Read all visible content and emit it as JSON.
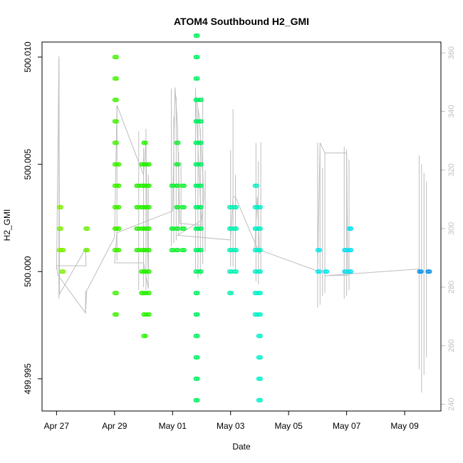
{
  "chart_data": {
    "type": "scatter",
    "title": "ATOM4 Southbound H2_GMI",
    "xlabel": "Date",
    "ylabel": "H2_GMI",
    "x_ticks": [
      "Apr 27",
      "Apr 29",
      "May 01",
      "May 03",
      "May 05",
      "May 07",
      "May 09"
    ],
    "x_range": [
      "2018-04-26T12:00",
      "2018-05-10T06:00"
    ],
    "y_ticks": [
      "499.995",
      "500.000",
      "500.005",
      "500.010"
    ],
    "y_range": [
      499.9935,
      500.0107
    ],
    "y2_ticks": [
      "240",
      "260",
      "280",
      "300",
      "320",
      "340",
      "360"
    ],
    "y2_range": [
      237.7,
      363.7
    ],
    "grid": false,
    "colors": {
      "gray_line": "#bebebe",
      "apr27": "#7cf000",
      "apr28": "#6cf000",
      "apr29": "#40f000",
      "apr30": "#28f000",
      "may01": "#10f030",
      "may02": "#00f060",
      "may03": "#00f0b0",
      "may04": "#00f0c8",
      "may06": "#00e8f0",
      "may07": "#00e0f0",
      "may09": "#0090e8"
    },
    "series": [
      {
        "color": "apr27",
        "points": [
          {
            "x": "2018-04-27T02:00",
            "ys": [
              500.003,
              500.002,
              500.001
            ]
          },
          {
            "x": "2018-04-27T04:00",
            "ys": [
              500.001,
              500.0
            ]
          }
        ]
      },
      {
        "color": "apr28",
        "points": [
          {
            "x": "2018-04-28T00:00",
            "ys": [
              500.002,
              500.001
            ]
          }
        ]
      },
      {
        "color": "apr29",
        "points": [
          {
            "x": "2018-04-29T00:00",
            "ys": [
              500.01,
              500.009,
              500.008,
              500.007,
              500.006,
              500.005,
              500.004,
              500.003,
              500.002,
              500.001,
              499.999,
              499.998
            ]
          },
          {
            "x": "2018-04-29T02:00",
            "ys": [
              500.005,
              500.004,
              500.003,
              500.002,
              500.001
            ]
          }
        ]
      },
      {
        "color": "apr30",
        "points": [
          {
            "x": "2018-04-29T18:00",
            "ys": [
              500.004,
              500.003,
              500.002,
              500.001
            ]
          },
          {
            "x": "2018-04-29T22:00",
            "ys": [
              500.005,
              500.004,
              500.003,
              500.002,
              500.001,
              500.0,
              499.999
            ]
          },
          {
            "x": "2018-04-30T00:00",
            "ys": [
              500.006,
              500.005,
              500.004,
              500.003,
              500.002,
              500.001,
              500.0,
              499.999,
              499.998,
              499.997
            ]
          },
          {
            "x": "2018-04-30T03:00",
            "ys": [
              500.005,
              500.004,
              500.003,
              500.002,
              500.001,
              500.0,
              499.999,
              499.998
            ]
          }
        ]
      },
      {
        "color": "may01",
        "points": [
          {
            "x": "2018-04-30T23:00",
            "ys": [
              500.004,
              500.002,
              500.001
            ]
          },
          {
            "x": "2018-05-01T03:00",
            "ys": [
              500.006,
              500.005,
              500.004,
              500.003,
              500.002,
              500.001
            ]
          },
          {
            "x": "2018-05-01T08:00",
            "ys": [
              500.004,
              500.003,
              500.002,
              500.001
            ]
          }
        ]
      },
      {
        "color": "may02",
        "points": [
          {
            "x": "2018-05-01T19:00",
            "ys": [
              500.011,
              500.01,
              500.009,
              500.008,
              500.007,
              500.006,
              500.005,
              500.004,
              500.003,
              500.002,
              500.001,
              500.0,
              499.999,
              499.998,
              499.997,
              499.996,
              499.995,
              499.994
            ]
          },
          {
            "x": "2018-05-01T22:00",
            "ys": [
              500.008,
              500.007,
              500.006,
              500.005,
              500.004,
              500.003,
              500.002,
              500.001,
              500.0
            ]
          }
        ]
      },
      {
        "color": "may03",
        "points": [
          {
            "x": "2018-05-02T23:00",
            "ys": [
              500.003,
              500.002,
              500.001,
              500.0,
              499.999
            ]
          },
          {
            "x": "2018-05-03T03:00",
            "ys": [
              500.003,
              500.002,
              500.001,
              500.0
            ]
          }
        ]
      },
      {
        "color": "may04",
        "points": [
          {
            "x": "2018-05-03T20:00",
            "ys": [
              500.004,
              500.003,
              500.002,
              500.001,
              500.0,
              499.999,
              499.998
            ]
          },
          {
            "x": "2018-05-03T23:00",
            "ys": [
              500.003,
              500.002,
              500.001,
              500.0,
              499.999,
              499.998,
              499.997,
              499.996,
              499.995,
              499.994
            ]
          }
        ]
      },
      {
        "color": "may06",
        "points": [
          {
            "x": "2018-05-06T00:00",
            "ys": [
              500.001,
              500.0
            ]
          },
          {
            "x": "2018-05-06T06:00",
            "ys": [
              500.0
            ]
          }
        ]
      },
      {
        "color": "may07",
        "points": [
          {
            "x": "2018-05-06T22:00",
            "ys": [
              500.001,
              500.0
            ]
          },
          {
            "x": "2018-05-07T02:00",
            "ys": [
              500.002,
              500.001,
              500.0
            ]
          }
        ]
      },
      {
        "color": "may09",
        "points": [
          {
            "x": "2018-05-09T12:00",
            "ys": [
              500.0
            ]
          },
          {
            "x": "2018-05-09T19:00",
            "ys": [
              500.0
            ]
          }
        ]
      }
    ],
    "gray_path": [
      {
        "x": "2018-04-27T00:00",
        "y": 286.2
      },
      {
        "x": "2018-04-27T02:00",
        "y": 358.2
      },
      {
        "x": "2018-04-27T02:30",
        "y": 277.7
      },
      {
        "x": "2018-04-28T00:00",
        "y": 293.1
      },
      {
        "x": "2018-04-28T00:30",
        "y": 287.3
      },
      {
        "x": "2018-04-27T00:00",
        "y": 287.3
      },
      {
        "x": "2018-04-27T01:00",
        "y": 284.1
      },
      {
        "x": "2018-04-28T00:00",
        "y": 271.2
      },
      {
        "x": "2018-04-28T01:00",
        "y": 278.8
      },
      {
        "x": "2018-04-29T00:00",
        "y": 297.0
      },
      {
        "x": "2018-04-29T02:00",
        "y": 342.1
      },
      {
        "x": "2018-04-30T00:00",
        "y": 318.3
      },
      {
        "x": "2018-04-30T02:00",
        "y": 330.0
      },
      {
        "x": "2018-04-30T04:00",
        "y": 279.5
      },
      {
        "x": "2018-04-30T00:00",
        "y": 288.3
      },
      {
        "x": "2018-04-29T00:00",
        "y": 288.3
      },
      {
        "x": "2018-04-29T02:00",
        "y": 298.6
      },
      {
        "x": "2018-05-01T00:00",
        "y": 306.0
      },
      {
        "x": "2018-05-01T02:00",
        "y": 348.2
      },
      {
        "x": "2018-05-01T04:00",
        "y": 335.7
      },
      {
        "x": "2018-05-01T06:00",
        "y": 301.8
      },
      {
        "x": "2018-05-02T00:00",
        "y": 301.1
      },
      {
        "x": "2018-05-01T19:00",
        "y": 345.8
      },
      {
        "x": "2018-05-01T22:00",
        "y": 338.6
      },
      {
        "x": "2018-05-02T02:00",
        "y": 311.3
      },
      {
        "x": "2018-05-02T00:00",
        "y": 302.8
      },
      {
        "x": "2018-05-01T04:00",
        "y": 297.7
      },
      {
        "x": "2018-05-03T00:00",
        "y": 296.1
      },
      {
        "x": "2018-05-03T02:00",
        "y": 310.8
      },
      {
        "x": "2018-05-03T04:00",
        "y": 310.8
      },
      {
        "x": "2018-05-04T00:00",
        "y": 291.4
      },
      {
        "x": "2018-05-03T22:00",
        "y": 310.8
      },
      {
        "x": "2018-05-03T20:00",
        "y": 293.3
      },
      {
        "x": "2018-05-06T00:00",
        "y": 285.5
      },
      {
        "x": "2018-05-06T02:00",
        "y": 329.3
      },
      {
        "x": "2018-05-06T06:00",
        "y": 325.8
      },
      {
        "x": "2018-05-07T00:00",
        "y": 325.8
      },
      {
        "x": "2018-05-07T01:00",
        "y": 284.1
      },
      {
        "x": "2018-05-06T06:00",
        "y": 283.9
      },
      {
        "x": "2018-05-09T12:00",
        "y": 286.2
      }
    ],
    "gray_spikes": [
      {
        "x": "2018-04-27T02:00",
        "lo": 276.0,
        "hi": 358.8
      },
      {
        "x": "2018-04-28T00:00",
        "lo": 271.0,
        "hi": 278.8
      },
      {
        "x": "2018-04-29T02:00",
        "lo": 289.0,
        "hi": 342.1
      },
      {
        "x": "2018-04-29T20:00",
        "lo": 279.0,
        "hi": 333.2
      },
      {
        "x": "2018-04-30T00:00",
        "lo": 280.0,
        "hi": 327.5
      },
      {
        "x": "2018-04-30T02:00",
        "lo": 279.0,
        "hi": 334.1
      },
      {
        "x": "2018-04-30T04:00",
        "lo": 285.0,
        "hi": 318.4
      },
      {
        "x": "2018-04-30T23:00",
        "lo": 294.0,
        "hi": 347.8
      },
      {
        "x": "2018-05-01T01:00",
        "lo": 295.0,
        "hi": 338.2
      },
      {
        "x": "2018-05-01T03:00",
        "lo": 296.0,
        "hi": 345.0
      },
      {
        "x": "2018-05-01T05:00",
        "lo": 298.0,
        "hi": 326.0
      },
      {
        "x": "2018-05-01T07:00",
        "lo": 299.0,
        "hi": 322.8
      },
      {
        "x": "2018-05-01T19:00",
        "lo": 286.0,
        "hi": 348.1
      },
      {
        "x": "2018-05-01T21:00",
        "lo": 283.0,
        "hi": 341.2
      },
      {
        "x": "2018-05-01T23:00",
        "lo": 284.0,
        "hi": 334.1
      },
      {
        "x": "2018-05-02T01:00",
        "lo": 288.0,
        "hi": 345.0
      },
      {
        "x": "2018-05-02T03:00",
        "lo": 292.0,
        "hi": 320.0
      },
      {
        "x": "2018-05-03T00:00",
        "lo": 287.0,
        "hi": 326.8
      },
      {
        "x": "2018-05-03T02:00",
        "lo": 287.0,
        "hi": 340.8
      },
      {
        "x": "2018-05-03T04:00",
        "lo": 286.0,
        "hi": 318.4
      },
      {
        "x": "2018-05-03T21:00",
        "lo": 282.0,
        "hi": 329.2
      },
      {
        "x": "2018-05-03T23:00",
        "lo": 281.0,
        "hi": 323.0
      },
      {
        "x": "2018-05-04T01:00",
        "lo": 285.0,
        "hi": 329.5
      },
      {
        "x": "2018-05-06T00:00",
        "lo": 273.0,
        "hi": 329.3
      },
      {
        "x": "2018-05-06T02:00",
        "lo": 274.0,
        "hi": 326.5
      },
      {
        "x": "2018-05-06T04:00",
        "lo": 277.0,
        "hi": 320.8
      },
      {
        "x": "2018-05-06T06:00",
        "lo": 278.0,
        "hi": 325.8
      },
      {
        "x": "2018-05-06T22:00",
        "lo": 276.0,
        "hi": 328.0
      },
      {
        "x": "2018-05-07T00:00",
        "lo": 277.0,
        "hi": 327.0
      },
      {
        "x": "2018-05-07T02:00",
        "lo": 279.0,
        "hi": 323.5
      },
      {
        "x": "2018-05-09T12:00",
        "lo": 252.0,
        "hi": 325.0
      },
      {
        "x": "2018-05-09T14:00",
        "lo": 244.0,
        "hi": 322.0
      },
      {
        "x": "2018-05-09T16:00",
        "lo": 250.0,
        "hi": 319.0
      },
      {
        "x": "2018-05-09T18:00",
        "lo": 256.0,
        "hi": 316.0
      }
    ]
  }
}
